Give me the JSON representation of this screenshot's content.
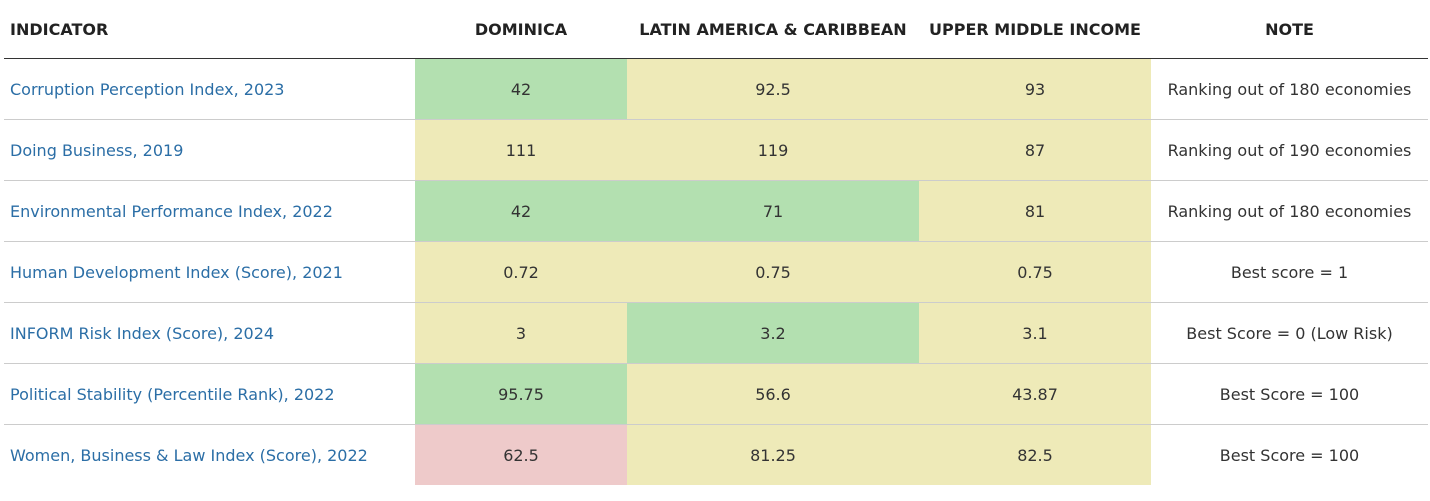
{
  "table": {
    "headers": [
      "INDICATOR",
      "DOMINICA",
      "LATIN AMERICA & CARIBBEAN",
      "UPPER MIDDLE INCOME",
      "NOTE"
    ],
    "rows": [
      {
        "indicator": "Corruption Perception Index, 2023",
        "values": [
          42,
          92.5,
          93
        ],
        "colors": [
          "#b3e0b0",
          "#eeeab8",
          "#eeeab8"
        ],
        "note": "Ranking out of 180 economies"
      },
      {
        "indicator": "Doing Business, 2019",
        "values": [
          111,
          119,
          87
        ],
        "colors": [
          "#eeeab8",
          "#eeeab8",
          "#eeeab8"
        ],
        "note": "Ranking out of 190 economies"
      },
      {
        "indicator": "Environmental Performance Index, 2022",
        "values": [
          42,
          71,
          81
        ],
        "colors": [
          "#b3e0b0",
          "#b3e0b0",
          "#eeeab8"
        ],
        "note": "Ranking out of 180 economies"
      },
      {
        "indicator": "Human Development Index (Score), 2021",
        "values": [
          0.72,
          0.75,
          0.75
        ],
        "colors": [
          "#eeeab8",
          "#eeeab8",
          "#eeeab8"
        ],
        "note": "Best score = 1"
      },
      {
        "indicator": "INFORM Risk Index (Score), 2024",
        "values": [
          3,
          3.2,
          3.1
        ],
        "colors": [
          "#eeeab8",
          "#b3e0b0",
          "#eeeab8"
        ],
        "note": "Best Score = 0 (Low Risk)"
      },
      {
        "indicator": "Political Stability (Percentile Rank), 2022",
        "values": [
          95.75,
          56.6,
          43.87
        ],
        "colors": [
          "#b3e0b0",
          "#eeeab8",
          "#eeeab8"
        ],
        "note": "Best Score = 100"
      },
      {
        "indicator": "Women, Business & Law Index (Score), 2022",
        "values": [
          62.5,
          81.25,
          82.5
        ],
        "colors": [
          "#eecaca",
          "#eeeab8",
          "#eeeab8"
        ],
        "note": "Best Score = 100"
      }
    ]
  }
}
